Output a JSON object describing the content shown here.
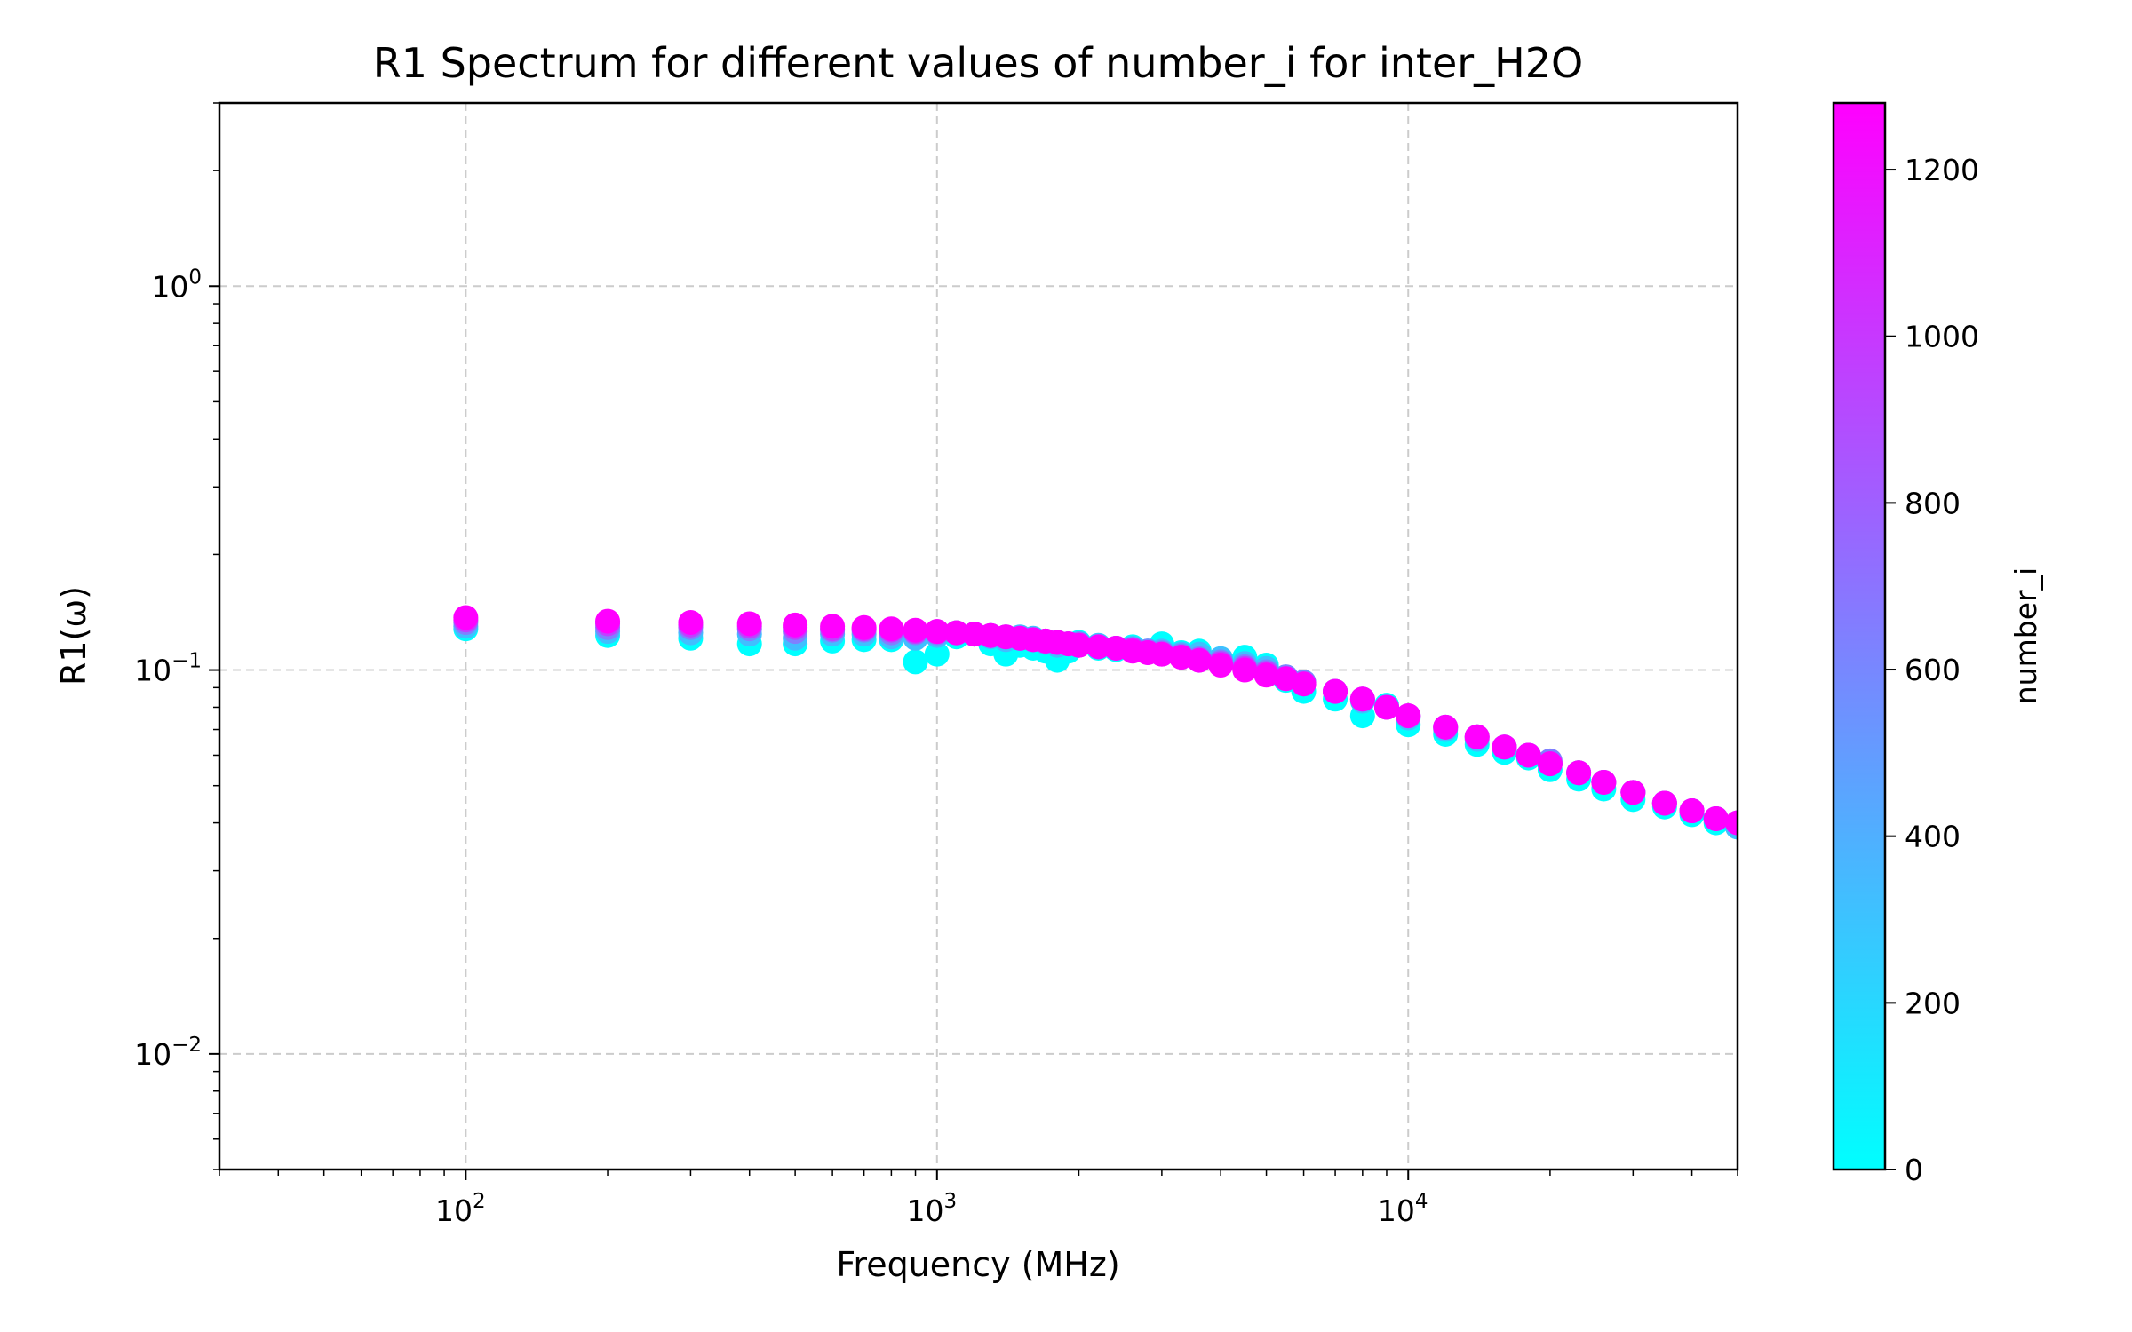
{
  "chart_data": {
    "type": "scatter",
    "title": "R1 Spectrum for different values of number_i for inter_H2O",
    "xlabel": "Frequency (MHz)",
    "ylabel": "R1(ω)",
    "x_scale": "log",
    "y_scale": "log",
    "xlim": [
      30,
      50000
    ],
    "ylim": [
      0.005,
      3
    ],
    "grid": true,
    "grid_style": "dashed",
    "x_ticks": [
      {
        "base": "10",
        "exp": "2",
        "value": 100
      },
      {
        "base": "10",
        "exp": "3",
        "value": 1000
      },
      {
        "base": "10",
        "exp": "4",
        "value": 10000
      }
    ],
    "y_ticks": [
      {
        "base": "10",
        "exp": "0",
        "value": 1
      },
      {
        "base": "10",
        "exp": "−1",
        "value": 0.1
      },
      {
        "base": "10",
        "exp": "−2",
        "value": 0.01
      }
    ],
    "colorbar": {
      "label": "number_i",
      "min": 0,
      "max": 1280,
      "ticks": [
        "0",
        "200",
        "400",
        "600",
        "800",
        "1000",
        "1200"
      ],
      "tick_values": [
        0,
        200,
        400,
        600,
        800,
        1000,
        1200
      ],
      "colormap": "cool",
      "color_low": "#00ffff",
      "color_high": "#ff00ff"
    },
    "x": [
      100,
      200,
      300,
      400,
      500,
      600,
      700,
      800,
      900,
      1000,
      1100,
      1200,
      1300,
      1400,
      1500,
      1600,
      1700,
      1800,
      1900,
      2000,
      2200,
      2400,
      2600,
      2800,
      3000,
      3300,
      3600,
      4000,
      4500,
      5000,
      5500,
      6000,
      7000,
      8000,
      9000,
      10000,
      12000,
      14000,
      16000,
      18000,
      20000,
      23000,
      26000,
      30000,
      35000,
      40000,
      45000,
      50000
    ],
    "series": [
      {
        "number_i": 0,
        "values": [
          0.128,
          0.123,
          0.121,
          0.117,
          0.117,
          0.119,
          0.12,
          0.12,
          0.105,
          0.11,
          0.122,
          0.124,
          0.117,
          0.11,
          0.116,
          0.114,
          0.112,
          0.106,
          0.112,
          0.118,
          0.114,
          0.113,
          0.115,
          0.112,
          0.117,
          0.111,
          0.112,
          0.107,
          0.108,
          0.103,
          0.094,
          0.088,
          0.084,
          0.076,
          0.081,
          0.072,
          0.068,
          0.064,
          0.061,
          0.059,
          0.055,
          0.052,
          0.049,
          0.046,
          0.044,
          0.042,
          0.04,
          0.039
        ]
      },
      {
        "number_i": 320,
        "values": [
          0.13,
          0.126,
          0.125,
          0.124,
          0.121,
          0.124,
          0.124,
          0.122,
          0.121,
          0.123,
          0.125,
          0.124,
          0.122,
          0.12,
          0.122,
          0.121,
          0.118,
          0.116,
          0.117,
          0.117,
          0.116,
          0.114,
          0.114,
          0.112,
          0.112,
          0.11,
          0.11,
          0.107,
          0.104,
          0.101,
          0.096,
          0.093,
          0.088,
          0.083,
          0.08,
          0.075,
          0.07,
          0.066,
          0.063,
          0.06,
          0.057,
          0.054,
          0.051,
          0.048,
          0.045,
          0.043,
          0.041,
          0.039
        ]
      },
      {
        "number_i": 640,
        "values": [
          0.133,
          0.129,
          0.129,
          0.128,
          0.126,
          0.127,
          0.127,
          0.125,
          0.125,
          0.125,
          0.125,
          0.124,
          0.123,
          0.122,
          0.121,
          0.12,
          0.119,
          0.118,
          0.117,
          0.117,
          0.115,
          0.114,
          0.113,
          0.112,
          0.111,
          0.109,
          0.107,
          0.105,
          0.102,
          0.099,
          0.096,
          0.093,
          0.088,
          0.084,
          0.08,
          0.076,
          0.071,
          0.067,
          0.063,
          0.06,
          0.058,
          0.054,
          0.051,
          0.048,
          0.045,
          0.043,
          0.041,
          0.04
        ]
      },
      {
        "number_i": 960,
        "values": [
          0.135,
          0.132,
          0.131,
          0.13,
          0.129,
          0.128,
          0.128,
          0.127,
          0.126,
          0.126,
          0.125,
          0.124,
          0.123,
          0.122,
          0.121,
          0.12,
          0.119,
          0.118,
          0.117,
          0.116,
          0.115,
          0.114,
          0.113,
          0.111,
          0.11,
          0.108,
          0.106,
          0.104,
          0.101,
          0.098,
          0.095,
          0.092,
          0.088,
          0.084,
          0.08,
          0.076,
          0.071,
          0.067,
          0.063,
          0.06,
          0.057,
          0.054,
          0.051,
          0.048,
          0.045,
          0.043,
          0.041,
          0.04
        ]
      },
      {
        "number_i": 1280,
        "values": [
          0.137,
          0.134,
          0.133,
          0.132,
          0.131,
          0.13,
          0.129,
          0.128,
          0.127,
          0.126,
          0.125,
          0.124,
          0.123,
          0.122,
          0.121,
          0.12,
          0.119,
          0.118,
          0.117,
          0.116,
          0.115,
          0.114,
          0.112,
          0.111,
          0.11,
          0.108,
          0.106,
          0.103,
          0.1,
          0.097,
          0.095,
          0.092,
          0.088,
          0.084,
          0.08,
          0.076,
          0.071,
          0.067,
          0.063,
          0.06,
          0.057,
          0.054,
          0.051,
          0.048,
          0.045,
          0.043,
          0.041,
          0.04
        ]
      }
    ]
  }
}
